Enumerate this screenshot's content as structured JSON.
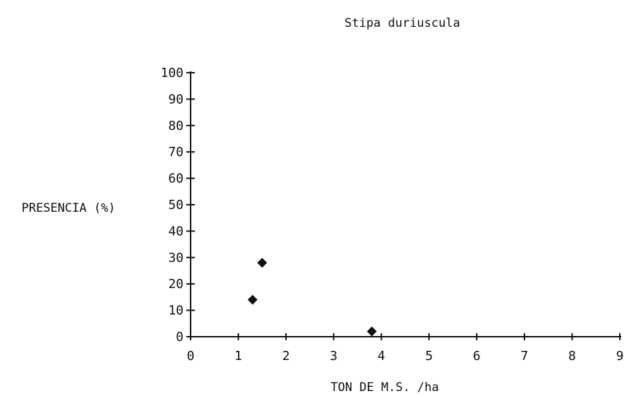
{
  "chart_data": {
    "type": "scatter",
    "title": "Stipa duriuscula",
    "xlabel": "TON DE M.S. /ha",
    "ylabel": "PRESENCIA (%)",
    "xlim": [
      0,
      9
    ],
    "ylim": [
      0,
      100
    ],
    "x_ticks": [
      0,
      1,
      2,
      3,
      4,
      5,
      6,
      7,
      8,
      9
    ],
    "y_ticks": [
      0,
      10,
      20,
      30,
      40,
      50,
      60,
      70,
      80,
      90,
      100
    ],
    "x_tick_labels": [
      "0",
      "1",
      "2",
      "3",
      "4",
      "5",
      "6",
      "7",
      "8",
      "9"
    ],
    "y_tick_labels": [
      "0",
      "10",
      "20",
      "30",
      "40",
      "50",
      "60",
      "70",
      "80",
      "90",
      "100"
    ],
    "grid": false,
    "legend": "none",
    "marker_color": "#111111",
    "series": [
      {
        "points": [
          {
            "x": 1.3,
            "y": 14
          },
          {
            "x": 1.5,
            "y": 28
          },
          {
            "x": 3.8,
            "y": 2
          }
        ]
      }
    ]
  }
}
